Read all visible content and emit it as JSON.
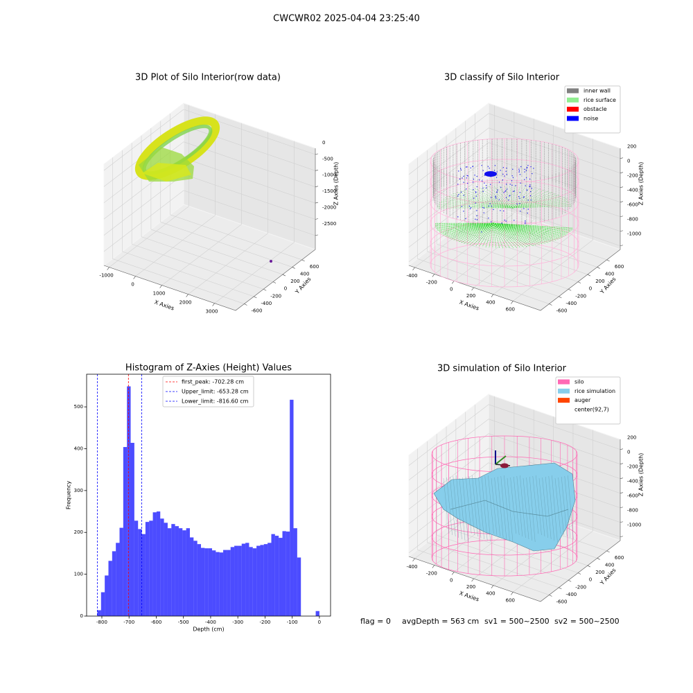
{
  "title": "CWCWR02 2025-04-04 23:25:40",
  "chart_data": [
    {
      "type": "scatter3d",
      "title": "3D Plot of Silo Interior(row data)",
      "xlabel": "X Axies",
      "ylabel": "Y Axies",
      "zlabel": "Z Axies (Depth)",
      "xlim": [
        -1200,
        3800
      ],
      "ylim": [
        -780,
        880
      ],
      "zlim": [
        -2930,
        190
      ],
      "xticks": [
        -1000,
        0,
        1000,
        2000,
        3000
      ],
      "yticks": [
        -600,
        -400,
        -200,
        0,
        200,
        400,
        600
      ],
      "zticks": [
        0,
        -500,
        -1000,
        -1500,
        -2000,
        -2500
      ]
    },
    {
      "type": "scatter3d",
      "title": "3D classify of Silo Interior",
      "xlabel": "X Axies",
      "ylabel": "Y Axies",
      "zlabel": "Z Axies (Depth)",
      "xlim": [
        -460,
        880
      ],
      "ylim": [
        -780,
        880
      ],
      "zlim": [
        -1050,
        340
      ],
      "xticks": [
        -400,
        -200,
        0,
        200,
        400,
        600
      ],
      "yticks": [
        -600,
        -400,
        -200,
        0,
        200,
        400,
        600
      ],
      "zticks": [
        200,
        0,
        -200,
        -400,
        -600,
        -800,
        -1000
      ],
      "legend": [
        {
          "label": "inner wall",
          "color": "gray"
        },
        {
          "label": "rice surface",
          "color": "lightgreen"
        },
        {
          "label": "obstacle",
          "color": "red"
        },
        {
          "label": "noise",
          "color": "blue"
        }
      ]
    },
    {
      "type": "histogram",
      "title": "Histogram of Z-Axies (Height) Values",
      "xlabel": "Depth (cm)",
      "ylabel": "Frequency",
      "color": "#0000ff",
      "alpha": 0.7,
      "xlim": [
        -856,
        41
      ],
      "ylim": [
        0,
        578
      ],
      "xticks": [
        -800,
        -700,
        -600,
        -500,
        -400,
        -300,
        -200,
        -100,
        0
      ],
      "yticks": [
        0,
        100,
        200,
        300,
        400,
        500
      ],
      "bins": [
        -816.6,
        -802.99,
        -789.38,
        -775.77,
        -762.16,
        -748.55,
        -734.94,
        -721.33,
        -707.72,
        -694.11,
        -680.5,
        -666.89,
        -653.28,
        -639.67,
        -626.06,
        -612.45,
        -598.84,
        -585.23,
        -571.62,
        -558.01,
        -544.4,
        -530.79,
        -517.18,
        -503.57,
        -489.96,
        -476.35,
        -462.74,
        -449.13,
        -435.52,
        -421.91,
        -408.3,
        -394.69,
        -381.08,
        -367.47,
        -353.86,
        -340.25,
        -326.64,
        -313.03,
        -299.42,
        -285.81,
        -272.2,
        -258.59,
        -244.98,
        -231.37,
        -217.76,
        -204.15,
        -190.54,
        -176.93,
        -163.32,
        -149.71,
        -136.1,
        -122.49,
        -108.88,
        -95.27,
        -81.66,
        -68.05,
        -54.44,
        -40.83,
        -27.22,
        -13.61,
        0
      ],
      "counts": [
        14,
        57,
        97,
        132,
        155,
        175,
        211,
        404,
        549,
        414,
        228,
        208,
        196,
        225,
        228,
        248,
        250,
        233,
        223,
        210,
        220,
        215,
        210,
        205,
        210,
        188,
        180,
        172,
        163,
        162,
        162,
        157,
        153,
        152,
        158,
        158,
        165,
        168,
        168,
        173,
        175,
        165,
        162,
        168,
        170,
        172,
        175,
        196,
        192,
        187,
        203,
        202,
        517,
        210,
        140,
        0,
        0,
        0,
        0,
        12
      ],
      "lines": [
        {
          "label": "first_peak: -702.28 cm",
          "value": -702.28,
          "color": "red"
        },
        {
          "label": "Upper_limit: -653.28 cm",
          "value": -653.28,
          "color": "blue"
        },
        {
          "label": "Lower_limit: -816.60 cm",
          "value": -816.6,
          "color": "blue"
        }
      ]
    },
    {
      "type": "surface3d",
      "title": "3D simulation of Silo Interior",
      "xlabel": "X Axies",
      "ylabel": "Y Axies",
      "zlabel": "Z Axies (Depth)",
      "xlim": [
        -460,
        880
      ],
      "ylim": [
        -780,
        880
      ],
      "zlim": [
        -1050,
        340
      ],
      "xticks": [
        -400,
        -200,
        0,
        200,
        400,
        600
      ],
      "yticks": [
        -600,
        -400,
        -200,
        0,
        200,
        400,
        600
      ],
      "zticks": [
        200,
        0,
        -200,
        -400,
        -600,
        -800,
        -1000
      ],
      "legend": [
        {
          "label": "silo",
          "color": "hotpink"
        },
        {
          "label": "rice simulation",
          "color": "skyblue"
        },
        {
          "label": "auger",
          "color": "orangered"
        },
        {
          "label": "center(92,7)"
        }
      ]
    }
  ],
  "status": [
    "flag = 0",
    "avgDepth = 563 cm",
    "sv1 = 500~2500",
    "sv2 = 500~2500"
  ]
}
